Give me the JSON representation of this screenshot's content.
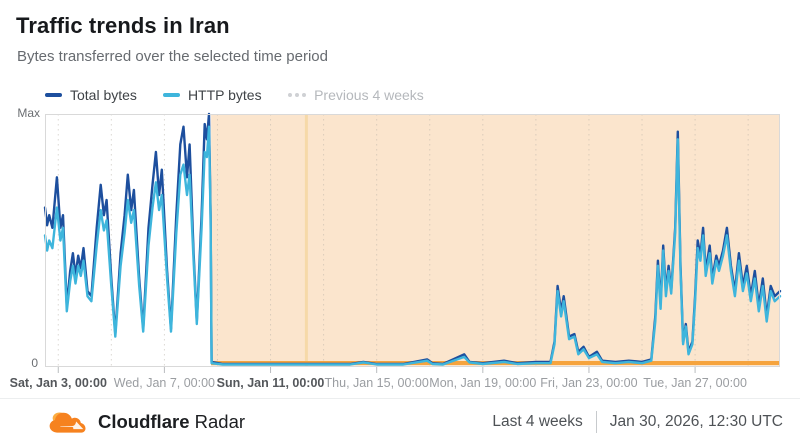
{
  "header": {
    "title": "Traffic trends in Iran",
    "subtitle": "Bytes transferred over the selected time period"
  },
  "legend": {
    "items": [
      {
        "label": "Total bytes",
        "color": "#1d4f9e",
        "style": "solid",
        "enabled": true
      },
      {
        "label": "HTTP bytes",
        "color": "#3eb5dc",
        "style": "solid",
        "enabled": true
      },
      {
        "label": "Previous 4 weeks",
        "color": "#cfd1d4",
        "style": "dotted",
        "enabled": false
      }
    ]
  },
  "y_axis": {
    "max_label": "Max",
    "zero_label": "0"
  },
  "footer": {
    "brand_bold": "Cloudflare",
    "brand_regular": "Radar",
    "range_label": "Last 4 weeks",
    "timestamp": "Jan 30, 2026, 12:30 UTC"
  },
  "chart_data": {
    "type": "line",
    "title": "Traffic trends in Iran",
    "subtitle": "Bytes transferred over the selected time period",
    "x_unit": "day of January 2026 (UTC)",
    "x_range": [
      2.5,
      30.2
    ],
    "ylim": [
      0,
      1
    ],
    "y_tick_labels": [
      "0",
      "Max"
    ],
    "grid": "vertical dashed gridlines every 2 days",
    "legend_position": "top-left",
    "x_ticks": [
      {
        "label": "Sat, Jan 3, 00:00",
        "day": 3,
        "weekend": true
      },
      {
        "label": "Wed, Jan 7, 00:00",
        "day": 7,
        "weekend": false
      },
      {
        "label": "Sun, Jan 11, 00:00",
        "day": 11,
        "weekend": true
      },
      {
        "label": "Thu, Jan 15, 00:00",
        "day": 15,
        "weekend": false
      },
      {
        "label": "Mon, Jan 19, 00:00",
        "day": 19,
        "weekend": false
      },
      {
        "label": "Fri, Jan 23, 00:00",
        "day": 23,
        "weekend": false
      },
      {
        "label": "Tue, Jan 27, 00:00",
        "day": 27,
        "weekend": false
      }
    ],
    "gridline_days": [
      3,
      5,
      7,
      9,
      11,
      13,
      15,
      17,
      19,
      21,
      23,
      25,
      27,
      29
    ],
    "annotation": {
      "label": "traffic-anomaly-highlight",
      "start_day": 8.76,
      "end_day": 30.2,
      "accent_day": 12.35,
      "fill": "#fbe5cd",
      "line_color": "#f6a43e",
      "accent_color": "#f6d9a8"
    },
    "x": [
      2.5,
      2.58,
      2.66,
      2.78,
      2.95,
      3.08,
      3.18,
      3.32,
      3.45,
      3.55,
      3.65,
      3.75,
      3.85,
      3.95,
      4.1,
      4.25,
      4.45,
      4.6,
      4.72,
      4.82,
      5.0,
      5.15,
      5.35,
      5.5,
      5.62,
      5.75,
      5.85,
      6.05,
      6.2,
      6.4,
      6.55,
      6.68,
      6.8,
      6.9,
      7.1,
      7.25,
      7.45,
      7.6,
      7.72,
      7.85,
      7.95,
      8.1,
      8.22,
      8.4,
      8.52,
      8.6,
      8.68,
      8.74,
      8.78,
      9.2,
      10.0,
      11.0,
      12.0,
      13.0,
      14.0,
      14.5,
      15.0,
      16.0,
      16.9,
      17.1,
      17.5,
      18.3,
      18.5,
      19.0,
      19.8,
      20.3,
      21.0,
      21.55,
      21.7,
      21.82,
      21.95,
      22.05,
      22.25,
      22.45,
      22.6,
      22.8,
      23.0,
      23.3,
      23.5,
      24.0,
      24.5,
      25.0,
      25.35,
      25.5,
      25.6,
      25.7,
      25.8,
      25.9,
      26.0,
      26.1,
      26.25,
      26.35,
      26.45,
      26.55,
      26.65,
      26.75,
      26.9,
      27.0,
      27.1,
      27.2,
      27.3,
      27.4,
      27.55,
      27.65,
      27.8,
      27.9,
      28.05,
      28.2,
      28.35,
      28.5,
      28.65,
      28.8,
      28.95,
      29.1,
      29.25,
      29.4,
      29.55,
      29.7,
      29.85,
      30.0,
      30.2
    ],
    "series": [
      {
        "name": "Total bytes",
        "color": "#1d4f9e",
        "values": [
          0.63,
          0.56,
          0.6,
          0.55,
          0.75,
          0.55,
          0.6,
          0.24,
          0.38,
          0.45,
          0.36,
          0.44,
          0.39,
          0.47,
          0.3,
          0.28,
          0.55,
          0.72,
          0.6,
          0.66,
          0.35,
          0.13,
          0.45,
          0.6,
          0.76,
          0.62,
          0.7,
          0.35,
          0.15,
          0.55,
          0.72,
          0.85,
          0.68,
          0.78,
          0.38,
          0.15,
          0.6,
          0.88,
          0.95,
          0.75,
          0.88,
          0.45,
          0.18,
          0.6,
          0.96,
          0.9,
          1.0,
          0.6,
          0.02,
          0.012,
          0.012,
          0.012,
          0.012,
          0.012,
          0.012,
          0.02,
          0.012,
          0.012,
          0.03,
          0.015,
          0.012,
          0.05,
          0.02,
          0.015,
          0.025,
          0.015,
          0.02,
          0.02,
          0.1,
          0.32,
          0.22,
          0.28,
          0.12,
          0.13,
          0.06,
          0.08,
          0.04,
          0.06,
          0.025,
          0.02,
          0.025,
          0.02,
          0.03,
          0.2,
          0.42,
          0.25,
          0.48,
          0.3,
          0.4,
          0.3,
          0.55,
          0.93,
          0.4,
          0.1,
          0.17,
          0.06,
          0.1,
          0.28,
          0.5,
          0.44,
          0.55,
          0.38,
          0.48,
          0.35,
          0.44,
          0.4,
          0.46,
          0.55,
          0.4,
          0.3,
          0.45,
          0.32,
          0.4,
          0.28,
          0.38,
          0.24,
          0.35,
          0.2,
          0.32,
          0.28,
          0.3
        ]
      },
      {
        "name": "HTTP bytes",
        "color": "#3eb5dc",
        "values": [
          0.52,
          0.46,
          0.5,
          0.47,
          0.63,
          0.5,
          0.55,
          0.22,
          0.34,
          0.4,
          0.33,
          0.4,
          0.36,
          0.42,
          0.28,
          0.26,
          0.48,
          0.62,
          0.54,
          0.58,
          0.32,
          0.12,
          0.4,
          0.53,
          0.66,
          0.57,
          0.62,
          0.32,
          0.14,
          0.48,
          0.63,
          0.73,
          0.62,
          0.68,
          0.35,
          0.14,
          0.53,
          0.76,
          0.8,
          0.68,
          0.76,
          0.42,
          0.17,
          0.55,
          0.85,
          0.83,
          0.95,
          0.58,
          0.015,
          0.01,
          0.01,
          0.01,
          0.01,
          0.01,
          0.01,
          0.018,
          0.01,
          0.01,
          0.025,
          0.012,
          0.01,
          0.04,
          0.018,
          0.012,
          0.02,
          0.012,
          0.015,
          0.015,
          0.09,
          0.3,
          0.2,
          0.26,
          0.11,
          0.12,
          0.05,
          0.07,
          0.035,
          0.05,
          0.02,
          0.015,
          0.02,
          0.015,
          0.025,
          0.18,
          0.4,
          0.23,
          0.46,
          0.28,
          0.38,
          0.29,
          0.53,
          0.9,
          0.38,
          0.09,
          0.16,
          0.05,
          0.09,
          0.26,
          0.47,
          0.42,
          0.52,
          0.36,
          0.45,
          0.33,
          0.42,
          0.38,
          0.44,
          0.52,
          0.38,
          0.28,
          0.42,
          0.3,
          0.37,
          0.26,
          0.35,
          0.22,
          0.32,
          0.18,
          0.3,
          0.26,
          0.28
        ]
      },
      {
        "name": "Previous 4 weeks",
        "color": "#cfd1d4",
        "values": [],
        "note": "legend entry disabled; series not drawn in this view"
      }
    ]
  }
}
